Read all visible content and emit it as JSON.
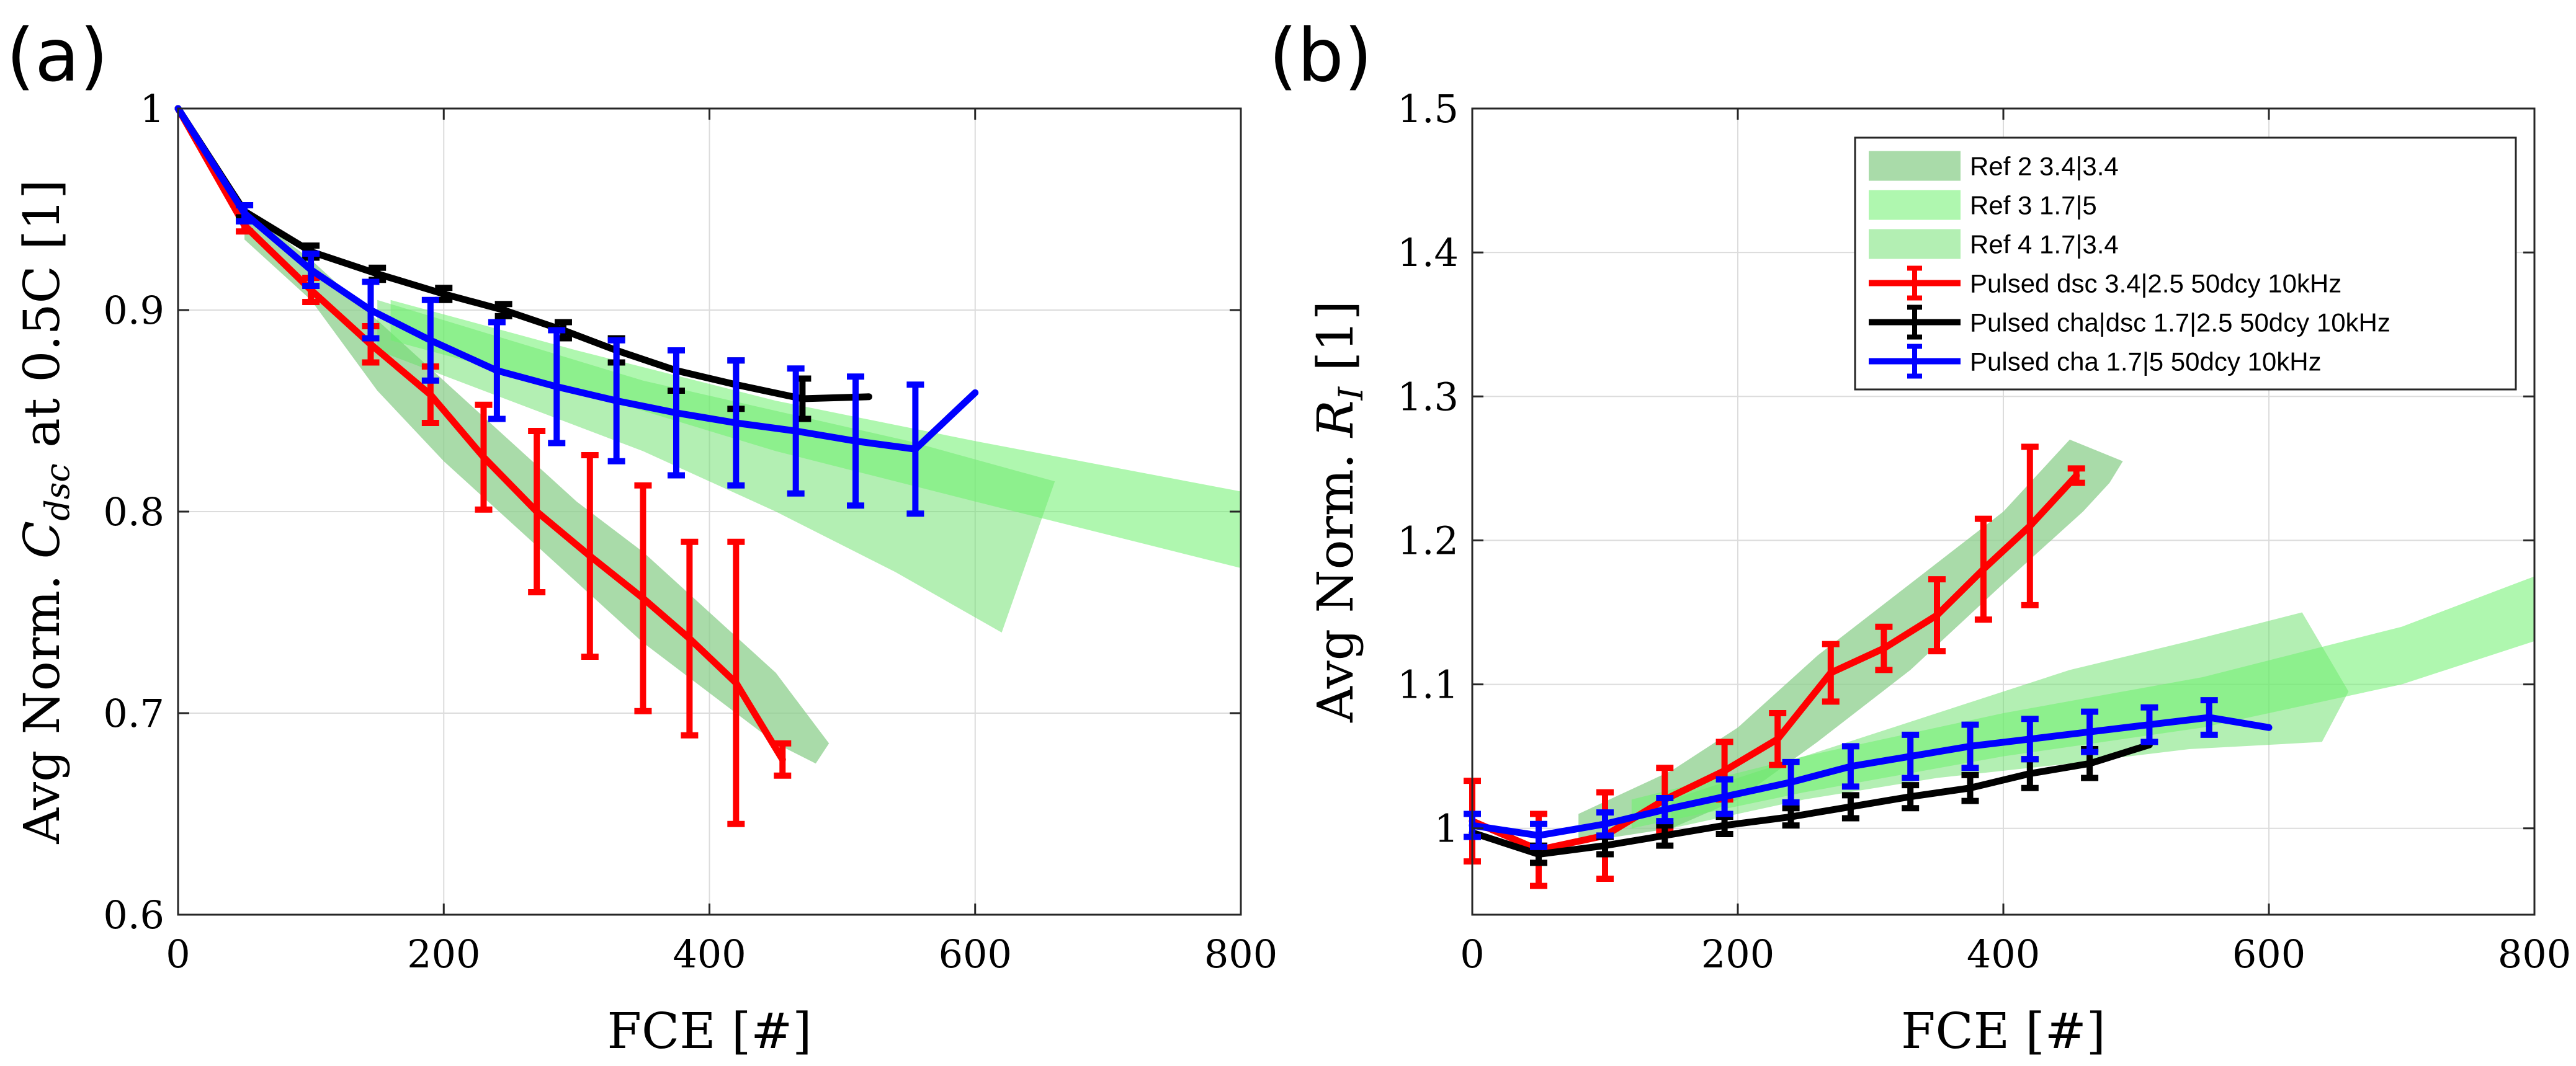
{
  "figure": {
    "legend": {
      "entries": [
        {
          "label": "Ref 2 3.4|3.4",
          "kind": "band",
          "color": "#8ccf8c",
          "opacity": 0.75
        },
        {
          "label": "Ref 3 1.7|5",
          "kind": "band",
          "color": "#6ef06e",
          "opacity": 0.55
        },
        {
          "label": "Ref 4 1.7|3.4",
          "kind": "band",
          "color": "#68e068",
          "opacity": 0.5
        },
        {
          "label": "Pulsed dsc 3.4|2.5 50dcy 10kHz",
          "kind": "line",
          "color": "#ff0000"
        },
        {
          "label": "Pulsed cha|dsc 1.7|2.5 50dcy 10kHz",
          "kind": "line",
          "color": "#000000"
        },
        {
          "label": "Pulsed cha 1.7|5 50dcy 10kHz",
          "kind": "line",
          "color": "#0000ff"
        }
      ]
    }
  },
  "chart_data": [
    {
      "panel_label": "(a)",
      "type": "line",
      "xlabel": "FCE [#]",
      "ylabel_parts": [
        "Avg Norm. ",
        "C",
        "dsc",
        " at 0.5C [1]"
      ],
      "xlim": [
        0,
        800
      ],
      "ylim": [
        0.6,
        1.0
      ],
      "xticks": [
        0,
        200,
        400,
        600,
        800
      ],
      "yticks": [
        0.6,
        0.7,
        0.8,
        0.9,
        1.0
      ],
      "xtick_labels": [
        "0",
        "200",
        "400",
        "600",
        "800"
      ],
      "ytick_labels": [
        "0.6",
        "0.7",
        "0.8",
        "0.9",
        "1"
      ],
      "grid": true,
      "bands": [
        {
          "name": "Ref 2 3.4|3.4",
          "color": "#8ccf8c",
          "opacity": 0.75,
          "upper": [
            [
              50,
              0.95
            ],
            [
              100,
              0.925
            ],
            [
              150,
              0.895
            ],
            [
              200,
              0.865
            ],
            [
              250,
              0.835
            ],
            [
              300,
              0.805
            ],
            [
              350,
              0.78
            ],
            [
              400,
              0.75
            ],
            [
              450,
              0.72
            ],
            [
              490,
              0.685
            ]
          ],
          "lower": [
            [
              50,
              0.935
            ],
            [
              100,
              0.905
            ],
            [
              150,
              0.86
            ],
            [
              200,
              0.825
            ],
            [
              250,
              0.795
            ],
            [
              300,
              0.765
            ],
            [
              350,
              0.735
            ],
            [
              400,
              0.71
            ],
            [
              450,
              0.685
            ],
            [
              480,
              0.675
            ]
          ]
        },
        {
          "name": "Ref 4 1.7|3.4",
          "color": "#68e068",
          "opacity": 0.5,
          "upper": [
            [
              150,
              0.905
            ],
            [
              250,
              0.885
            ],
            [
              350,
              0.865
            ],
            [
              450,
              0.85
            ],
            [
              550,
              0.835
            ],
            [
              660,
              0.815
            ]
          ],
          "lower": [
            [
              150,
              0.88
            ],
            [
              250,
              0.855
            ],
            [
              350,
              0.83
            ],
            [
              450,
              0.8
            ],
            [
              540,
              0.77
            ],
            [
              620,
              0.74
            ]
          ]
        },
        {
          "name": "Ref 3 1.7|5",
          "color": "#6ef06e",
          "opacity": 0.55,
          "upper": [
            [
              160,
              0.905
            ],
            [
              300,
              0.88
            ],
            [
              450,
              0.855
            ],
            [
              600,
              0.835
            ],
            [
              800,
              0.81
            ]
          ],
          "lower": [
            [
              160,
              0.885
            ],
            [
              300,
              0.86
            ],
            [
              450,
              0.83
            ],
            [
              600,
              0.805
            ],
            [
              800,
              0.772
            ]
          ]
        }
      ],
      "series": [
        {
          "name": "Pulsed dsc 3.4|2.5 50dcy 10kHz",
          "color": "#ff0000",
          "x": [
            0,
            50,
            100,
            145,
            190,
            230,
            270,
            310,
            350,
            385,
            420,
            455
          ],
          "y": [
            1.0,
            0.942,
            0.91,
            0.883,
            0.858,
            0.827,
            0.8,
            0.778,
            0.757,
            0.737,
            0.715,
            0.677
          ],
          "err": [
            0,
            0.003,
            0.006,
            0.009,
            0.014,
            0.026,
            0.04,
            0.05,
            0.056,
            0.048,
            0.07,
            0.008
          ]
        },
        {
          "name": "Pulsed cha|dsc 1.7|2.5 50dcy 10kHz",
          "color": "#000000",
          "x": [
            0,
            50,
            100,
            150,
            200,
            245,
            290,
            330,
            375,
            420,
            470,
            520
          ],
          "y": [
            1.0,
            0.949,
            0.929,
            0.918,
            0.908,
            0.9,
            0.89,
            0.88,
            0.87,
            0.863,
            0.856,
            0.857
          ],
          "err": [
            0,
            0.003,
            0.003,
            0.003,
            0.003,
            0.003,
            0.004,
            0.006,
            0.01,
            0.012,
            0.01,
            0
          ]
        },
        {
          "name": "Pulsed cha 1.7|5 50dcy 10kHz",
          "color": "#0000ff",
          "x": [
            0,
            50,
            100,
            145,
            190,
            240,
            285,
            330,
            375,
            420,
            465,
            510,
            555,
            600
          ],
          "y": [
            1.0,
            0.948,
            0.92,
            0.9,
            0.885,
            0.87,
            0.862,
            0.855,
            0.849,
            0.844,
            0.84,
            0.835,
            0.831,
            0.859
          ],
          "err": [
            0,
            0.004,
            0.008,
            0.014,
            0.02,
            0.024,
            0.028,
            0.03,
            0.031,
            0.031,
            0.031,
            0.032,
            0.032,
            0
          ]
        }
      ]
    },
    {
      "panel_label": "(b)",
      "type": "line",
      "xlabel": "FCE [#]",
      "ylabel_parts": [
        "Avg Norm. ",
        "R",
        "I",
        " [1]"
      ],
      "xlim": [
        0,
        800
      ],
      "ylim": [
        0.94,
        1.5
      ],
      "xticks": [
        0,
        200,
        400,
        600,
        800
      ],
      "yticks": [
        1.0,
        1.1,
        1.2,
        1.3,
        1.4,
        1.5
      ],
      "xtick_labels": [
        "0",
        "200",
        "400",
        "600",
        "800"
      ],
      "ytick_labels": [
        "1",
        "1.1",
        "1.2",
        "1.3",
        "1.4",
        "1.5"
      ],
      "grid": true,
      "bands": [
        {
          "name": "Ref 2 3.4|3.4",
          "color": "#8ccf8c",
          "opacity": 0.75,
          "upper": [
            [
              80,
              1.01
            ],
            [
              150,
              1.04
            ],
            [
              200,
              1.07
            ],
            [
              260,
              1.12
            ],
            [
              330,
              1.17
            ],
            [
              400,
              1.22
            ],
            [
              450,
              1.27
            ],
            [
              490,
              1.255
            ]
          ],
          "lower": [
            [
              80,
              0.99
            ],
            [
              150,
              1.0
            ],
            [
              200,
              1.02
            ],
            [
              260,
              1.06
            ],
            [
              330,
              1.11
            ],
            [
              400,
              1.17
            ],
            [
              460,
              1.22
            ],
            [
              480,
              1.24
            ]
          ]
        },
        {
          "name": "Ref 4 1.7|3.4",
          "color": "#68e068",
          "opacity": 0.5,
          "upper": [
            [
              150,
              1.02
            ],
            [
              250,
              1.05
            ],
            [
              350,
              1.08
            ],
            [
              450,
              1.11
            ],
            [
              540,
              1.13
            ],
            [
              625,
              1.15
            ],
            [
              660,
              1.095
            ]
          ],
          "lower": [
            [
              150,
              1.0
            ],
            [
              250,
              1.02
            ],
            [
              350,
              1.035
            ],
            [
              450,
              1.045
            ],
            [
              540,
              1.055
            ],
            [
              640,
              1.06
            ]
          ]
        },
        {
          "name": "Ref 3 1.7|5",
          "color": "#6ef06e",
          "opacity": 0.55,
          "upper": [
            [
              120,
              1.02
            ],
            [
              250,
              1.05
            ],
            [
              400,
              1.08
            ],
            [
              550,
              1.105
            ],
            [
              700,
              1.14
            ],
            [
              800,
              1.175
            ]
          ],
          "lower": [
            [
              120,
              1.0
            ],
            [
              250,
              1.025
            ],
            [
              400,
              1.05
            ],
            [
              550,
              1.07
            ],
            [
              700,
              1.1
            ],
            [
              800,
              1.13
            ]
          ]
        }
      ],
      "series": [
        {
          "name": "Pulsed dsc 3.4|2.5 50dcy 10kHz",
          "color": "#ff0000",
          "x": [
            0,
            50,
            100,
            145,
            190,
            230,
            270,
            310,
            350,
            385,
            420,
            455
          ],
          "y": [
            1.005,
            0.985,
            0.995,
            1.02,
            1.04,
            1.062,
            1.108,
            1.125,
            1.148,
            1.18,
            1.21,
            1.245
          ],
          "err": [
            0.028,
            0.025,
            0.03,
            0.022,
            0.02,
            0.018,
            0.02,
            0.015,
            0.025,
            0.035,
            0.055,
            0.005
          ]
        },
        {
          "name": "Pulsed cha|dsc 1.7|2.5 50dcy 10kHz",
          "color": "#000000",
          "x": [
            0,
            50,
            100,
            145,
            190,
            240,
            285,
            330,
            375,
            420,
            465,
            510
          ],
          "y": [
            0.997,
            0.982,
            0.988,
            0.995,
            1.002,
            1.008,
            1.015,
            1.022,
            1.028,
            1.038,
            1.045,
            1.058
          ],
          "err": [
            0,
            0.006,
            0.006,
            0.007,
            0.006,
            0.006,
            0.008,
            0.008,
            0.009,
            0.01,
            0.01,
            0
          ]
        },
        {
          "name": "Pulsed cha 1.7|5 50dcy 10kHz",
          "color": "#0000ff",
          "x": [
            0,
            50,
            100,
            145,
            190,
            240,
            285,
            330,
            375,
            420,
            465,
            510,
            555,
            600
          ],
          "y": [
            1.002,
            0.995,
            1.003,
            1.013,
            1.022,
            1.032,
            1.043,
            1.05,
            1.057,
            1.062,
            1.067,
            1.072,
            1.077,
            1.07
          ],
          "err": [
            0.008,
            0.008,
            0.008,
            0.008,
            0.012,
            0.014,
            0.014,
            0.015,
            0.015,
            0.014,
            0.014,
            0.012,
            0.012,
            0
          ]
        }
      ]
    }
  ]
}
